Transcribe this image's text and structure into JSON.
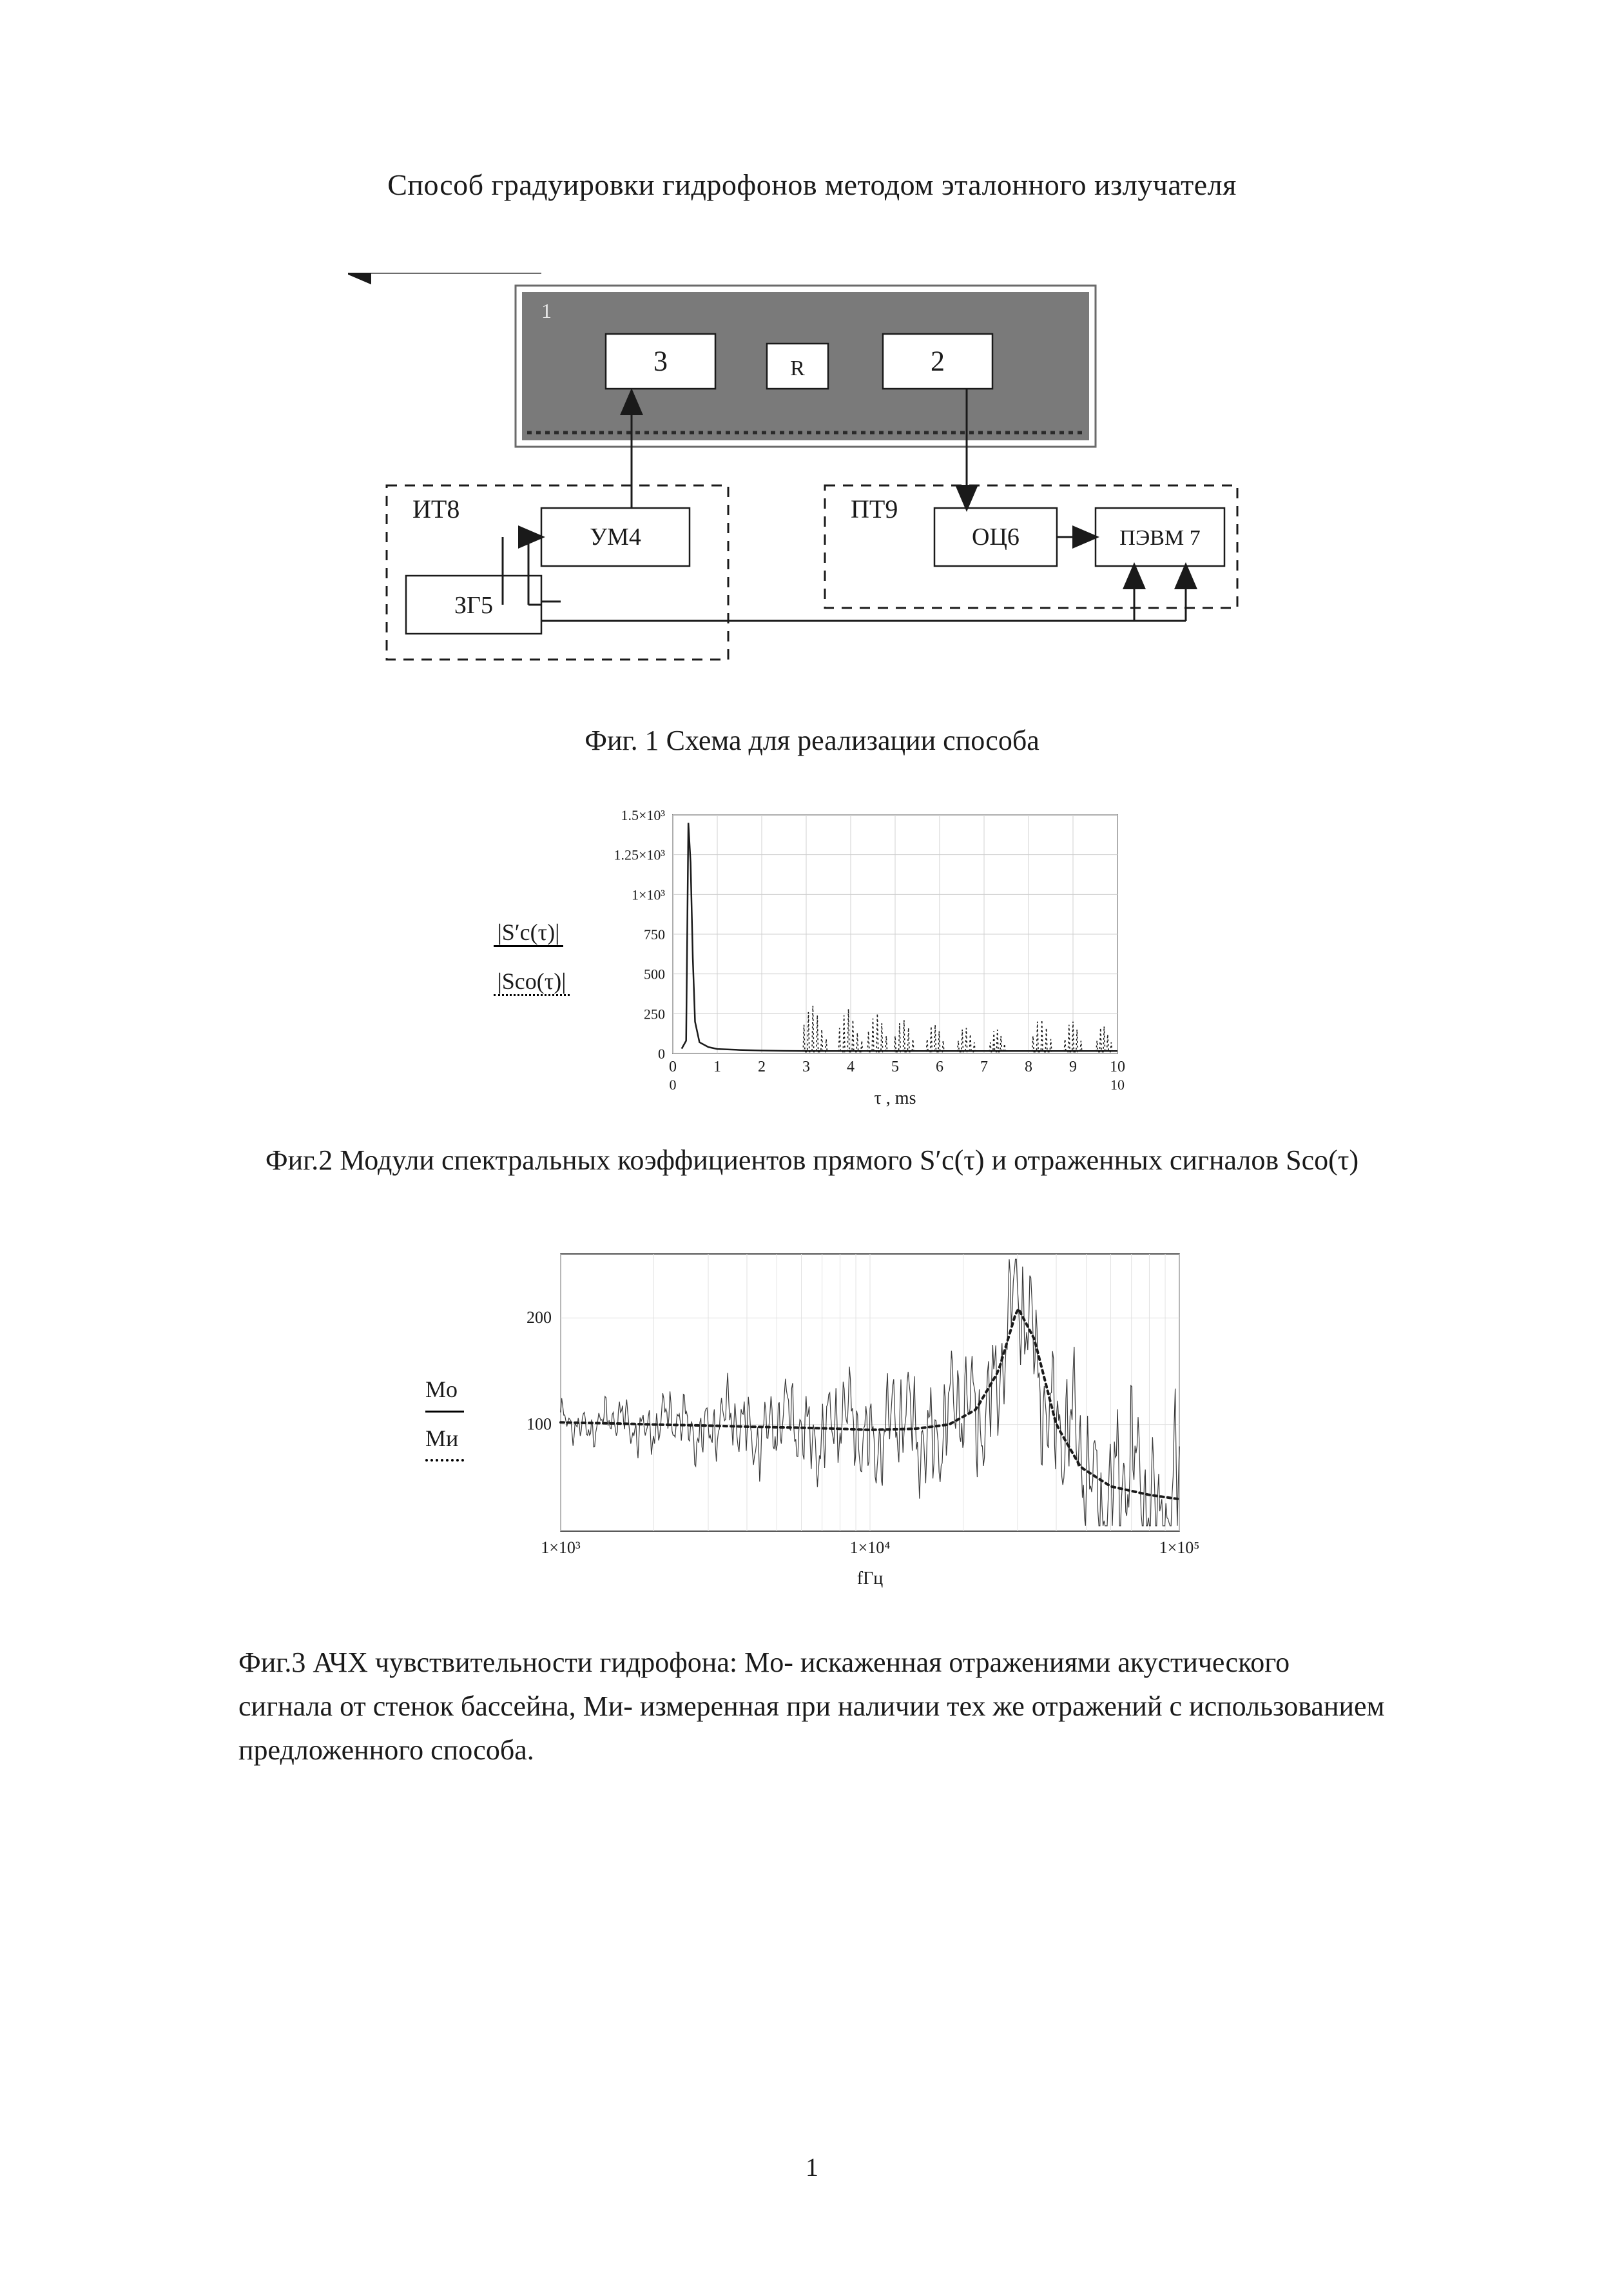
{
  "title": "Способ градуировки гидрофонов методом эталонного излучателя",
  "page_number": "1",
  "fig1": {
    "caption": "Фиг. 1 Схема для реализации способа",
    "colors": {
      "tank_fill": "#7a7a7a",
      "tank_border": "#6a6a6a",
      "box_fill": "#ffffff",
      "box_border": "#1a1a1a",
      "dashed_border": "#1a1a1a",
      "arrow": "#1a1a1a",
      "dotted_line": "#2a2a2a",
      "text": "#1a1a1a"
    },
    "tank": {
      "label_small": "1"
    },
    "inner_boxes": {
      "left": {
        "label": "3"
      },
      "mid": {
        "label": "R"
      },
      "right": {
        "label": "2"
      }
    },
    "it_group_label": "ИТ8",
    "pt_group_label": "ПТ9",
    "boxes": {
      "um4": "УМ4",
      "zg5": "ЗГ5",
      "oc6": "ОЦ6",
      "pevm7": "ПЭВМ 7"
    }
  },
  "fig2": {
    "caption": "Фиг.2 Модули спектральных коэффициентов прямого S′c(τ) и отраженных сигналов Sco(τ)",
    "legend_a": "|S′c(τ)|",
    "legend_b": "|Sco(τ)|",
    "x_label": "τ , ms",
    "xlim": [
      0,
      10
    ],
    "ylim": [
      0,
      1500
    ],
    "xticks": [
      0,
      1,
      2,
      3,
      4,
      5,
      6,
      7,
      8,
      9,
      10
    ],
    "yticks": [
      0,
      250,
      500,
      750,
      1000,
      1250,
      1500
    ],
    "ytick_labels": [
      "0",
      "250",
      "500",
      "750",
      "1×10³",
      "1.25×10³",
      "1.5×10³"
    ],
    "grid_color": "#d0d0d0",
    "background": "#ffffff",
    "series_a": {
      "color": "#1a1a1a",
      "width": 2.5,
      "points": [
        [
          0.2,
          30
        ],
        [
          0.3,
          80
        ],
        [
          0.35,
          1450
        ],
        [
          0.4,
          1200
        ],
        [
          0.45,
          600
        ],
        [
          0.5,
          200
        ],
        [
          0.6,
          70
        ],
        [
          0.8,
          40
        ],
        [
          1.0,
          28
        ],
        [
          1.5,
          22
        ],
        [
          2.0,
          18
        ],
        [
          2.5,
          16
        ],
        [
          3.0,
          15
        ],
        [
          4.0,
          15
        ],
        [
          6.0,
          15
        ],
        [
          10.0,
          15
        ]
      ]
    },
    "series_b_groups": [
      {
        "center": 3.2,
        "spread": 0.25,
        "peaks": [
          180,
          260,
          300,
          240,
          150,
          90
        ]
      },
      {
        "center": 4.0,
        "spread": 0.25,
        "peaks": [
          160,
          240,
          280,
          210,
          130,
          80
        ]
      },
      {
        "center": 4.6,
        "spread": 0.2,
        "peaks": [
          140,
          220,
          250,
          190,
          110
        ]
      },
      {
        "center": 5.2,
        "spread": 0.2,
        "peaks": [
          110,
          190,
          210,
          160,
          90
        ]
      },
      {
        "center": 5.9,
        "spread": 0.18,
        "peaks": [
          90,
          170,
          180,
          140,
          80
        ]
      },
      {
        "center": 6.6,
        "spread": 0.18,
        "peaks": [
          80,
          150,
          160,
          120,
          70
        ]
      },
      {
        "center": 7.3,
        "spread": 0.16,
        "peaks": [
          70,
          140,
          150,
          110,
          60
        ]
      },
      {
        "center": 8.3,
        "spread": 0.2,
        "peaks": [
          110,
          200,
          210,
          160,
          90
        ]
      },
      {
        "center": 9.0,
        "spread": 0.18,
        "peaks": [
          90,
          180,
          200,
          150,
          80
        ]
      },
      {
        "center": 9.7,
        "spread": 0.16,
        "peaks": [
          80,
          160,
          170,
          120,
          70
        ]
      }
    ],
    "series_b_color": "#1a1a1a",
    "series_b_dash": "3 4"
  },
  "fig3": {
    "caption": "Фиг.3 АЧХ чувствительности гидрофона: Mо- искаженная отражениями акустического сигнала от стенок бассейна, Mи- измеренная при наличии тех же отражений с использованием предложенного способа.",
    "legend_a": "Mо",
    "legend_b": "Mи",
    "x_label": "fГц",
    "xlim_log": [
      1000,
      100000
    ],
    "ylim": [
      0,
      260
    ],
    "yticks": [
      100,
      200
    ],
    "xticks_log": [
      1000,
      10000,
      100000
    ],
    "xtick_labels": [
      "1×10³",
      "1×10⁴",
      "1×10⁵"
    ],
    "grid_color": "#e2e2e2",
    "background": "#ffffff",
    "series_Mo": {
      "color": "#3a3a3a",
      "width": 1.2
    },
    "series_Mi": {
      "color": "#1a1a1a",
      "width": 4,
      "dash": "5 6",
      "points": [
        [
          1000,
          102
        ],
        [
          1500,
          101
        ],
        [
          2000,
          100
        ],
        [
          3000,
          99
        ],
        [
          4000,
          98
        ],
        [
          6000,
          97
        ],
        [
          8000,
          96
        ],
        [
          10000,
          95
        ],
        [
          14000,
          96
        ],
        [
          18000,
          100
        ],
        [
          22000,
          114
        ],
        [
          26000,
          150
        ],
        [
          30000,
          210
        ],
        [
          34000,
          180
        ],
        [
          40000,
          100
        ],
        [
          48000,
          60
        ],
        [
          60000,
          42
        ],
        [
          80000,
          34
        ],
        [
          100000,
          30
        ]
      ]
    }
  }
}
